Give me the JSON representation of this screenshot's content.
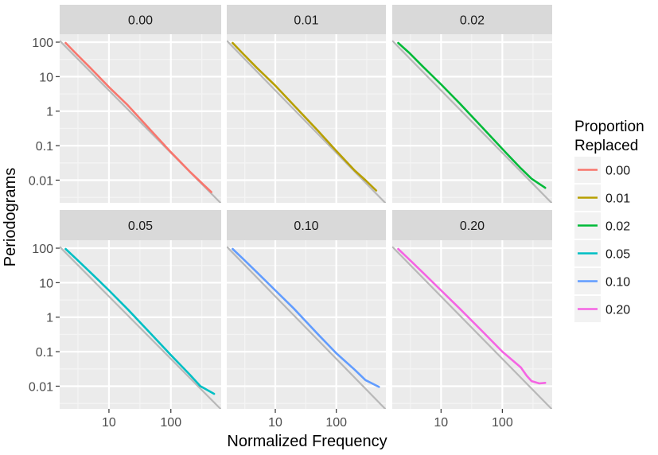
{
  "chart_data": {
    "type": "line",
    "facet_variable": "Proportion Replaced",
    "xlabel": "Normalized Frequency",
    "ylabel": "Periodograms",
    "x_scale": "log10",
    "y_scale": "log10",
    "xlim": [
      1.6,
      650
    ],
    "ylim": [
      0.0022,
      170
    ],
    "x_ticks": [
      10,
      100
    ],
    "x_tick_labels": [
      "10",
      "100"
    ],
    "y_ticks": [
      100,
      10,
      1,
      0.1,
      0.01
    ],
    "y_tick_labels": [
      "100",
      "10",
      "1",
      "0.1",
      "0.01"
    ],
    "reference_line": {
      "color": "#b8b8b8",
      "x": [
        1.6,
        650
      ],
      "y": [
        110,
        0.0021
      ]
    },
    "legend": {
      "title_lines": [
        "Proportion",
        "Replaced"
      ],
      "position": "right",
      "entries": [
        {
          "label": "0.00",
          "color": "#F8766D"
        },
        {
          "label": "0.01",
          "color": "#B79F00"
        },
        {
          "label": "0.02",
          "color": "#00BA38"
        },
        {
          "label": "0.05",
          "color": "#00BFC4"
        },
        {
          "label": "0.10",
          "color": "#619CFF"
        },
        {
          "label": "0.20",
          "color": "#F564E3"
        }
      ]
    },
    "panels": [
      {
        "strip": "0.00",
        "color": "#F8766D",
        "x": [
          2,
          3,
          5,
          10,
          20,
          50,
          100,
          200,
          300,
          450
        ],
        "y": [
          95,
          45,
          18,
          5,
          1.5,
          0.25,
          0.065,
          0.018,
          0.009,
          0.0045
        ]
      },
      {
        "strip": "0.01",
        "color": "#B79F00",
        "x": [
          2,
          3,
          5,
          10,
          20,
          50,
          100,
          200,
          300,
          450
        ],
        "y": [
          95,
          45,
          18,
          5.5,
          1.5,
          0.27,
          0.07,
          0.019,
          0.01,
          0.005
        ]
      },
      {
        "strip": "0.02",
        "color": "#00BA38",
        "x": [
          2,
          3,
          5,
          10,
          20,
          50,
          100,
          200,
          300,
          500
        ],
        "y": [
          95,
          50,
          20,
          6,
          1.7,
          0.3,
          0.08,
          0.022,
          0.011,
          0.006
        ]
      },
      {
        "strip": "0.05",
        "color": "#00BFC4",
        "x": [
          2,
          3,
          5,
          10,
          20,
          50,
          100,
          200,
          300,
          500
        ],
        "y": [
          95,
          48,
          20,
          6,
          1.7,
          0.3,
          0.08,
          0.022,
          0.01,
          0.006
        ]
      },
      {
        "strip": "0.10",
        "color": "#619CFF",
        "x": [
          2,
          3,
          5,
          10,
          20,
          50,
          100,
          200,
          300,
          500
        ],
        "y": [
          95,
          48,
          20,
          6,
          1.8,
          0.32,
          0.09,
          0.03,
          0.015,
          0.0095
        ]
      },
      {
        "strip": "0.20",
        "color": "#F564E3",
        "x": [
          2,
          3,
          5,
          10,
          20,
          50,
          100,
          200,
          250,
          300,
          400,
          500
        ],
        "y": [
          95,
          48,
          20,
          6,
          1.8,
          0.35,
          0.1,
          0.035,
          0.02,
          0.014,
          0.012,
          0.0125
        ]
      }
    ]
  }
}
